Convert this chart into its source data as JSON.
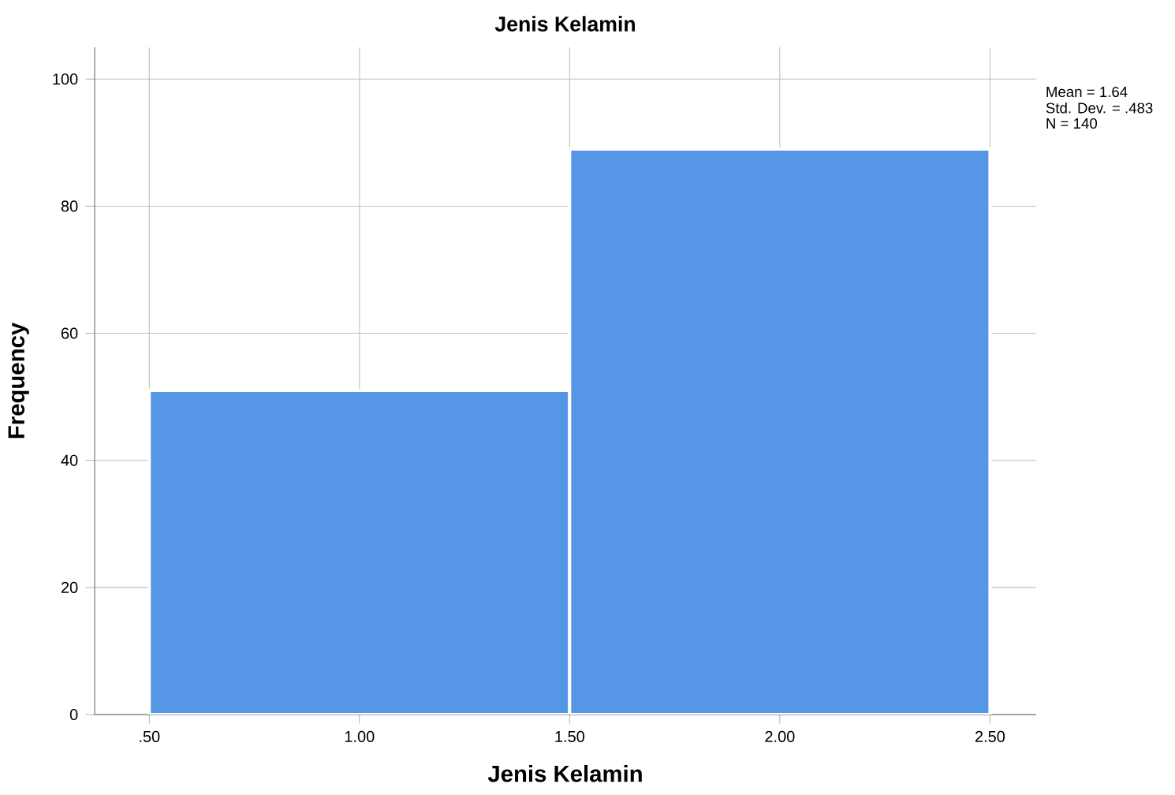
{
  "chart_data": {
    "type": "histogram",
    "title": "Jenis Kelamin",
    "xlabel": "Jenis Kelamin",
    "ylabel": "Frequency",
    "bins": [
      0.5,
      1.5,
      2.5
    ],
    "values": [
      51,
      89
    ],
    "color": "#5596e6",
    "xlim": [
      0.37,
      2.61
    ],
    "ylim": [
      0,
      105
    ],
    "xticks": [
      {
        "value": 0.5,
        "label": ".50"
      },
      {
        "value": 1.0,
        "label": "1.00"
      },
      {
        "value": 1.5,
        "label": "1.50"
      },
      {
        "value": 2.0,
        "label": "2.00"
      },
      {
        "value": 2.5,
        "label": "2.50"
      }
    ],
    "yticks": [
      0,
      20,
      40,
      60,
      80,
      100
    ],
    "grid": true,
    "annotations": [
      "Mean = 1.64",
      "Std. Dev. = .483",
      "N = 140"
    ]
  }
}
